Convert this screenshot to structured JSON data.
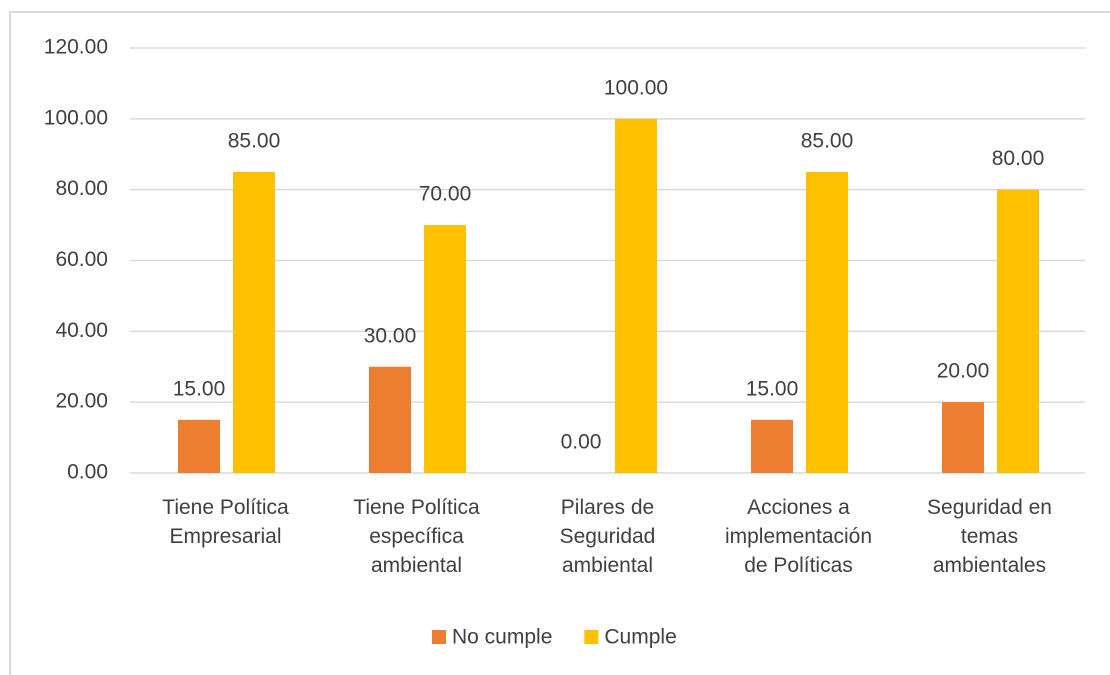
{
  "chart_data": {
    "type": "bar",
    "categories": [
      "Tiene Política Empresarial",
      "Tiene Política específica ambiental",
      "Pilares de Seguridad ambiental",
      "Acciones a implementación de Políticas",
      "Seguridad en temas ambientales"
    ],
    "series": [
      {
        "name": "No cumple",
        "color": "#ed7d31",
        "values": [
          15,
          30,
          0,
          15,
          20
        ],
        "value_labels": [
          "15.00",
          "30.00",
          "0.00",
          "15.00",
          "20.00"
        ]
      },
      {
        "name": "Cumple",
        "color": "#ffc000",
        "values": [
          85,
          70,
          100,
          85,
          80
        ],
        "value_labels": [
          "85.00",
          "70.00",
          "100.00",
          "85.00",
          "80.00"
        ]
      }
    ],
    "ylim": [
      0,
      120
    ],
    "yticks": [
      {
        "value": 0,
        "label": "0.00"
      },
      {
        "value": 20,
        "label": "20.00"
      },
      {
        "value": 40,
        "label": "40.00"
      },
      {
        "value": 60,
        "label": "60.00"
      },
      {
        "value": 80,
        "label": "80.00"
      },
      {
        "value": 100,
        "label": "100.00"
      },
      {
        "value": 120,
        "label": "120.00"
      }
    ],
    "grid": true,
    "legend": "bottom"
  }
}
